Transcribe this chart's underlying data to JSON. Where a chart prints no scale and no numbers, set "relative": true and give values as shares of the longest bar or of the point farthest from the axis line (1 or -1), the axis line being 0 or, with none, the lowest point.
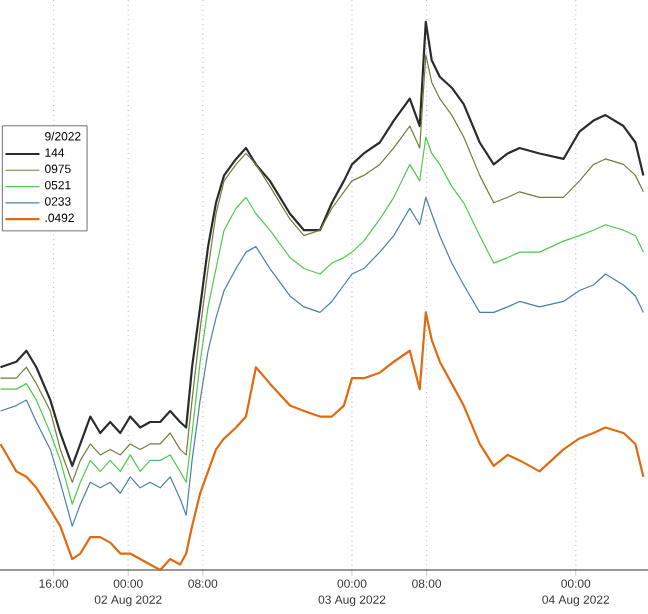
{
  "chart_data": {
    "type": "line",
    "relative": true,
    "legend": "left",
    "legend_title": "9/2022",
    "grid": "x",
    "marker": "none",
    "line_style": "solid",
    "x": [
      "2022-08-01T10:18",
      "2022-08-01T12:00",
      "2022-08-01T13:05",
      "2022-08-01T14:09",
      "2022-08-01T15:39",
      "2022-08-01T16:43",
      "2022-08-01T18:00",
      "2022-08-01T18:52",
      "2022-08-01T19:56",
      "2022-08-01T21:00",
      "2022-08-01T22:04",
      "2022-08-01T23:09",
      "2022-08-02T00:13",
      "2022-08-02T01:17",
      "2022-08-02T02:21",
      "2022-08-02T03:26",
      "2022-08-02T04:30",
      "2022-08-02T05:34",
      "2022-08-02T06:13",
      "2022-08-02T06:51",
      "2022-08-02T07:43",
      "2022-08-02T08:34",
      "2022-08-02T09:25",
      "2022-08-02T10:17",
      "2022-08-02T11:34",
      "2022-08-02T12:38",
      "2022-08-02T13:42",
      "2022-08-02T15:12",
      "2022-08-02T17:21",
      "2022-08-02T18:51",
      "2022-08-02T20:34",
      "2022-08-02T21:51",
      "2022-08-02T23:08",
      "2022-08-03T00:00",
      "2022-08-03T01:16",
      "2022-08-03T02:59",
      "2022-08-03T04:29",
      "2022-08-03T06:12",
      "2022-08-03T07:16",
      "2022-08-03T07:55",
      "2022-08-03T08:33",
      "2022-08-03T09:25",
      "2022-08-03T10:42",
      "2022-08-03T11:59",
      "2022-08-03T13:42",
      "2022-08-03T15:12",
      "2022-08-03T16:42",
      "2022-08-03T17:59",
      "2022-08-03T20:07",
      "2022-08-03T22:41",
      "2022-08-04T00:24",
      "2022-08-04T01:54",
      "2022-08-04T03:11",
      "2022-08-04T05:07",
      "2022-08-04T06:24",
      "2022-08-04T07:15"
    ],
    "xlim": [
      "2022-08-01T10:15",
      "2022-08-04T07:45"
    ],
    "xticks": [
      {
        "value": "2022-08-01T16:00",
        "label": "16:00"
      },
      {
        "value": "2022-08-02T00:00",
        "label": "00:00"
      },
      {
        "value": "2022-08-02T08:00",
        "label": "08:00"
      },
      {
        "value": "2022-08-03T00:00",
        "label": "00:00"
      },
      {
        "value": "2022-08-03T08:00",
        "label": "08:00"
      },
      {
        "value": "2022-08-04T00:00",
        "label": "00:00"
      }
    ],
    "annotations": [
      "02 Aug 2022",
      "03 Aug 2022",
      "04 Aug 2022"
    ],
    "series": [
      {
        "name": "144",
        "color": "#2b2b2b",
        "values": [
          0.37,
          0.38,
          0.4,
          0.37,
          0.31,
          0.25,
          0.19,
          0.23,
          0.28,
          0.25,
          0.27,
          0.25,
          0.28,
          0.26,
          0.27,
          0.27,
          0.29,
          0.27,
          0.26,
          0.37,
          0.48,
          0.59,
          0.67,
          0.72,
          0.75,
          0.77,
          0.74,
          0.71,
          0.65,
          0.62,
          0.62,
          0.67,
          0.71,
          0.74,
          0.76,
          0.78,
          0.82,
          0.86,
          0.81,
          1.0,
          0.93,
          0.9,
          0.88,
          0.85,
          0.78,
          0.74,
          0.76,
          0.77,
          0.76,
          0.75,
          0.8,
          0.82,
          0.83,
          0.81,
          0.78,
          0.72
        ]
      },
      {
        "name": "0975",
        "color": "#6b7f3a",
        "values": [
          0.35,
          0.35,
          0.37,
          0.34,
          0.29,
          0.22,
          0.16,
          0.2,
          0.23,
          0.21,
          0.22,
          0.21,
          0.23,
          0.22,
          0.23,
          0.23,
          0.25,
          0.22,
          0.21,
          0.31,
          0.44,
          0.55,
          0.65,
          0.71,
          0.74,
          0.76,
          0.74,
          0.7,
          0.64,
          0.61,
          0.62,
          0.66,
          0.69,
          0.71,
          0.72,
          0.74,
          0.77,
          0.81,
          0.77,
          0.94,
          0.89,
          0.86,
          0.83,
          0.79,
          0.72,
          0.67,
          0.68,
          0.69,
          0.68,
          0.68,
          0.71,
          0.74,
          0.75,
          0.74,
          0.72,
          0.69
        ]
      },
      {
        "name": "0521",
        "color": "#4fc94f",
        "values": [
          0.33,
          0.33,
          0.34,
          0.31,
          0.25,
          0.2,
          0.12,
          0.16,
          0.2,
          0.18,
          0.2,
          0.18,
          0.21,
          0.18,
          0.2,
          0.2,
          0.21,
          0.18,
          0.16,
          0.25,
          0.38,
          0.48,
          0.55,
          0.62,
          0.66,
          0.68,
          0.65,
          0.62,
          0.57,
          0.55,
          0.54,
          0.56,
          0.57,
          0.58,
          0.6,
          0.64,
          0.68,
          0.74,
          0.71,
          0.79,
          0.76,
          0.74,
          0.7,
          0.67,
          0.61,
          0.56,
          0.57,
          0.58,
          0.58,
          0.6,
          0.61,
          0.62,
          0.63,
          0.62,
          0.61,
          0.58
        ]
      },
      {
        "name": "0233",
        "color": "#4a7fa8",
        "values": [
          0.29,
          0.3,
          0.31,
          0.27,
          0.22,
          0.16,
          0.08,
          0.12,
          0.16,
          0.15,
          0.16,
          0.14,
          0.17,
          0.15,
          0.16,
          0.15,
          0.17,
          0.13,
          0.1,
          0.2,
          0.31,
          0.4,
          0.46,
          0.51,
          0.55,
          0.58,
          0.59,
          0.55,
          0.5,
          0.48,
          0.47,
          0.49,
          0.52,
          0.54,
          0.55,
          0.58,
          0.61,
          0.66,
          0.63,
          0.68,
          0.65,
          0.61,
          0.56,
          0.52,
          0.47,
          0.47,
          0.48,
          0.49,
          0.48,
          0.49,
          0.51,
          0.52,
          0.54,
          0.52,
          0.5,
          0.47
        ]
      },
      {
        "name": ".0492",
        "color": "#e06a10",
        "values": [
          0.23,
          0.18,
          0.17,
          0.15,
          0.11,
          0.08,
          0.02,
          0.03,
          0.06,
          0.06,
          0.05,
          0.03,
          0.03,
          0.02,
          0.01,
          0.0,
          0.02,
          0.01,
          0.03,
          0.08,
          0.14,
          0.18,
          0.22,
          0.24,
          0.26,
          0.28,
          0.37,
          0.34,
          0.3,
          0.29,
          0.28,
          0.28,
          0.3,
          0.35,
          0.35,
          0.36,
          0.38,
          0.4,
          0.33,
          0.47,
          0.42,
          0.38,
          0.34,
          0.3,
          0.23,
          0.19,
          0.21,
          0.2,
          0.18,
          0.22,
          0.24,
          0.25,
          0.26,
          0.25,
          0.23,
          0.17
        ]
      }
    ]
  }
}
